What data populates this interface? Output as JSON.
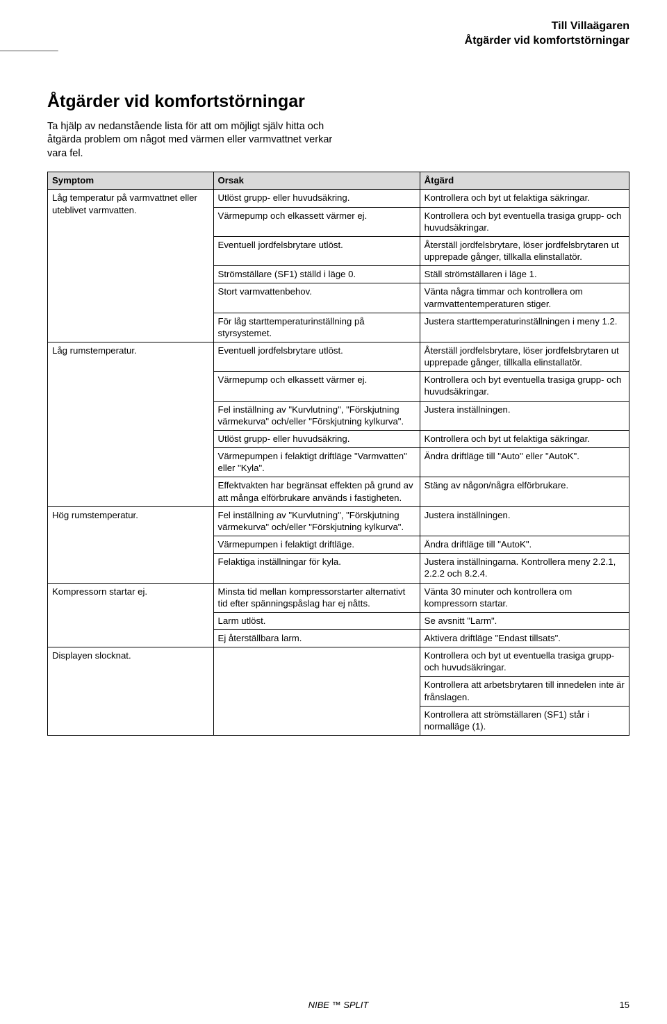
{
  "header": {
    "line1": "Till Villaägaren",
    "line2": "Åtgärder vid komfortstörningar"
  },
  "title": "Åtgärder vid komfortstörningar",
  "intro": "Ta hjälp av nedanstående lista för att om möjligt själv hitta och åtgärda problem om något med värmen eller varmvattnet verkar vara fel.",
  "table": {
    "headers": [
      "Symptom",
      "Orsak",
      "Åtgärd"
    ],
    "groups": [
      {
        "symptom": "Låg temperatur på varmvattnet eller uteblivet varmvatten.",
        "rows": [
          [
            "Utlöst grupp- eller huvudsäkring.",
            "Kontrollera och byt ut felaktiga säkringar."
          ],
          [
            "Värmepump och elkassett värmer ej.",
            "Kontrollera och byt eventuella trasiga grupp- och huvudsäkringar."
          ],
          [
            "Eventuell jordfelsbrytare utlöst.",
            "Återställ jordfelsbrytare, löser jordfelsbrytaren ut upprepade gånger, tillkalla elinstallatör."
          ],
          [
            "Strömställare (SF1) ställd i läge 0.",
            "Ställ strömställaren i läge 1."
          ],
          [
            "Stort varmvattenbehov.",
            "Vänta några timmar och kontrollera om varmvattentemperaturen stiger."
          ],
          [
            "För låg starttemperaturinställning på styrsystemet.",
            "Justera starttemperaturinställningen i meny 1.2."
          ]
        ]
      },
      {
        "symptom": "Låg rumstemperatur.",
        "rows": [
          [
            "Eventuell jordfelsbrytare utlöst.",
            "Återställ jordfelsbrytare, löser jordfelsbrytaren ut upprepade gånger, tillkalla elinstallatör."
          ],
          [
            "Värmepump och elkassett värmer ej.",
            "Kontrollera och byt eventuella trasiga grupp- och huvudsäkringar."
          ],
          [
            "Fel inställning av \"Kurvlutning\", \"Förskjutning värmekurva\" och/eller \"Förskjutning kylkurva\".",
            "Justera inställningen."
          ],
          [
            "Utlöst grupp- eller huvudsäkring.",
            "Kontrollera och byt ut felaktiga säkringar."
          ],
          [
            "Värmepumpen i felaktigt driftläge \"Varmvatten\" eller \"Kyla\".",
            "Ändra driftläge till \"Auto\" eller \"AutoK\"."
          ],
          [
            "Effektvakten har begränsat effekten på grund av att många elförbrukare används i fastigheten.",
            "Stäng av någon/några elförbrukare."
          ]
        ]
      },
      {
        "symptom": "Hög rumstemperatur.",
        "rows": [
          [
            "Fel inställning av \"Kurvlutning\", \"Förskjutning värmekurva\" och/eller \"Förskjutning kylkurva\".",
            "Justera inställningen."
          ],
          [
            "Värmepumpen i felaktigt driftläge.",
            "Ändra driftläge till \"AutoK\"."
          ],
          [
            "Felaktiga inställningar för kyla.",
            "Justera inställningarna. Kontrollera meny 2.2.1, 2.2.2 och 8.2.4."
          ]
        ]
      },
      {
        "symptom": "Kompressorn startar ej.",
        "rows": [
          [
            "Minsta tid mellan kompressorstarter alternativt tid efter spänningspåslag har ej nåtts.",
            "Vänta 30 minuter och kontrollera om kompressorn startar."
          ],
          [
            "Larm utlöst.",
            "Se avsnitt \"Larm\"."
          ],
          [
            "Ej återställbara larm.",
            "Aktivera driftläge \"Endast tillsats\"."
          ]
        ]
      },
      {
        "symptom": "Displayen slocknat.",
        "rows": [
          [
            "",
            "Kontrollera och byt ut eventuella trasiga grupp- och huvudsäkringar."
          ],
          [
            "",
            "Kontrollera att arbetsbrytaren till innedelen inte är frånslagen."
          ],
          [
            "",
            "Kontrollera att strömställaren (SF1) står i normalläge (1)."
          ]
        ]
      }
    ]
  },
  "footer": {
    "center": "NIBE ™ SPLIT",
    "page": "15"
  }
}
